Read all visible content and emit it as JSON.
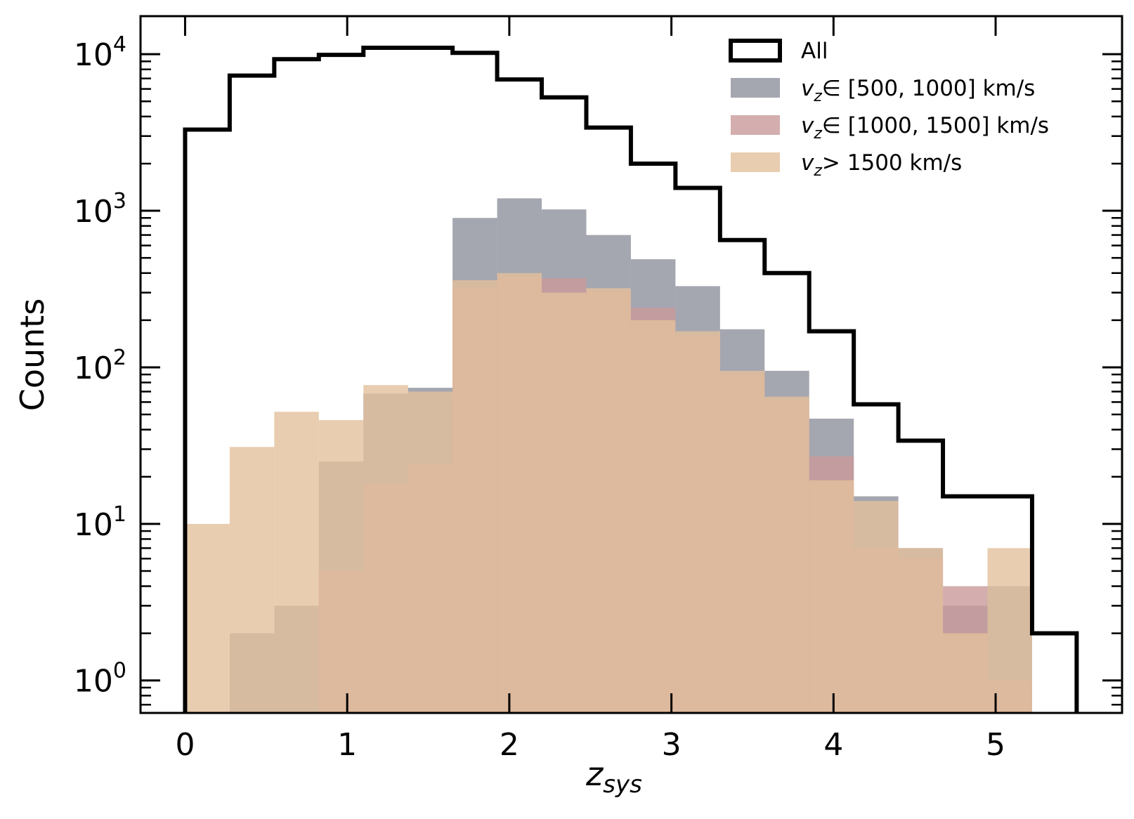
{
  "chart_data": {
    "type": "histogram",
    "ylabel": "Counts",
    "xlabel_main": "z",
    "xlabel_sub": "sys",
    "yscale": "log",
    "xlim": [
      -0.275,
      5.78
    ],
    "ylim": [
      0.62,
      17500
    ],
    "bin_edges": [
      0.0,
      0.275,
      0.55,
      0.825,
      1.1,
      1.375,
      1.65,
      1.925,
      2.2,
      2.475,
      2.75,
      3.025,
      3.3,
      3.575,
      3.85,
      4.125,
      4.4,
      4.675,
      4.95,
      5.225,
      5.5
    ],
    "xticks": [
      {
        "value": 0,
        "label": "0"
      },
      {
        "value": 1,
        "label": "1"
      },
      {
        "value": 2,
        "label": "2"
      },
      {
        "value": 3,
        "label": "3"
      },
      {
        "value": 4,
        "label": "4"
      },
      {
        "value": 5,
        "label": "5"
      }
    ],
    "yticks": [
      {
        "value": 1,
        "base": "10",
        "exp": "0"
      },
      {
        "value": 10,
        "base": "10",
        "exp": "1"
      },
      {
        "value": 100,
        "base": "10",
        "exp": "2"
      },
      {
        "value": 1000,
        "base": "10",
        "exp": "3"
      },
      {
        "value": 10000,
        "base": "10",
        "exp": "4"
      }
    ],
    "series": [
      {
        "name": "All",
        "style": "step",
        "color": "#000000",
        "values": [
          3300,
          7300,
          9300,
          9900,
          11000,
          11000,
          10200,
          6900,
          5300,
          3400,
          2000,
          1400,
          650,
          400,
          170,
          58,
          34,
          15,
          15,
          2
        ]
      },
      {
        "name": "[500, 1000] km/s",
        "style": "filled",
        "color": "#8d909c",
        "opacity": 0.8,
        "values": [
          null,
          2,
          3,
          25,
          68,
          74,
          900,
          1200,
          1020,
          700,
          490,
          330,
          175,
          95,
          47,
          15,
          7,
          3,
          4,
          null
        ]
      },
      {
        "name": "[1000, 1500] km/s",
        "style": "filled",
        "color": "#c99a9a",
        "opacity": 0.8,
        "values": [
          null,
          null,
          null,
          5,
          18,
          24,
          320,
          380,
          370,
          310,
          240,
          160,
          90,
          62,
          27,
          7,
          6,
          4,
          1,
          null
        ]
      },
      {
        "name": "> 1500 km/s",
        "style": "filled",
        "color": "#e3c09c",
        "opacity": 0.8,
        "values": [
          10,
          31,
          52,
          46,
          77,
          70,
          360,
          400,
          300,
          320,
          200,
          170,
          95,
          65,
          19,
          14,
          7,
          2,
          7,
          null
        ]
      }
    ],
    "legend": {
      "placement": "top-right",
      "entries": [
        {
          "prefix": "",
          "sub": "",
          "text": "All"
        },
        {
          "prefix": "v",
          "sub": "z",
          "text": "∈ [500, 1000] km/s"
        },
        {
          "prefix": "v",
          "sub": "z",
          "text": "∈ [1000, 1500] km/s"
        },
        {
          "prefix": "v",
          "sub": "z",
          "text": "> 1500 km/s"
        }
      ]
    }
  }
}
